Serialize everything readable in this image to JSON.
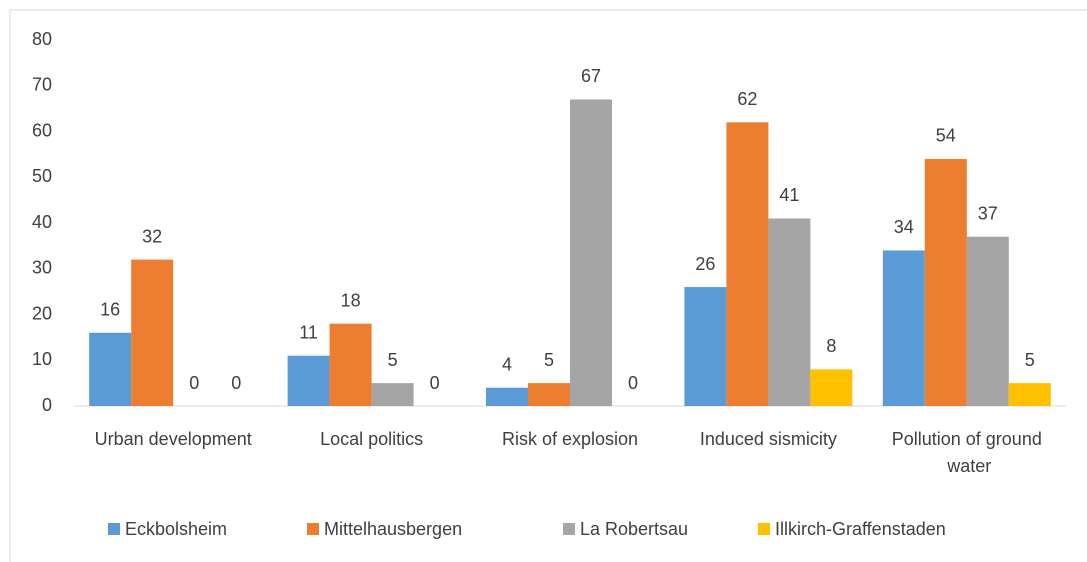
{
  "chart_data": {
    "type": "bar",
    "categories": [
      "Urban development",
      "Local politics",
      "Risk of explosion",
      "Induced sismicity",
      "Pollution of ground water"
    ],
    "series": [
      {
        "name": "Eckbolsheim",
        "color": "#5b9bd5",
        "values": [
          16,
          11,
          4,
          26,
          34
        ]
      },
      {
        "name": "Mittelhausbergen",
        "color": "#ed7d31",
        "values": [
          32,
          18,
          5,
          62,
          54
        ]
      },
      {
        "name": "La Robertsau",
        "color": "#a5a5a5",
        "values": [
          0,
          5,
          67,
          41,
          37
        ]
      },
      {
        "name": "Illkirch-Graffenstaden",
        "color": "#ffc000",
        "values": [
          0,
          0,
          0,
          8,
          5
        ]
      }
    ],
    "ylim": [
      0,
      80
    ],
    "yticks": [
      0,
      10,
      20,
      30,
      40,
      50,
      60,
      70,
      80
    ],
    "grid": false,
    "legend": "bottom"
  }
}
